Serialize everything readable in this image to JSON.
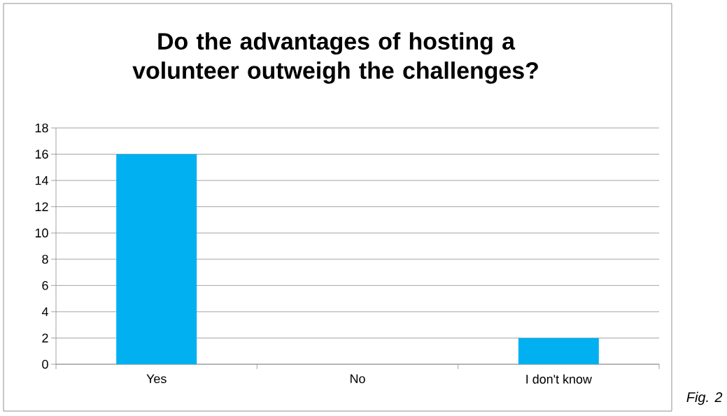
{
  "chart_data": {
    "type": "bar",
    "title": "Do the advantages of hosting a volunteer outweigh the challenges?",
    "categories": [
      "Yes",
      "No",
      "I don't know"
    ],
    "values": [
      16,
      0,
      2
    ],
    "color": "#00b0f0",
    "ylim": [
      0,
      18
    ],
    "yticks": [
      0,
      2,
      4,
      6,
      8,
      10,
      12,
      14,
      16,
      18
    ],
    "grid": "y",
    "annotations": [
      "Fig. 2"
    ]
  }
}
